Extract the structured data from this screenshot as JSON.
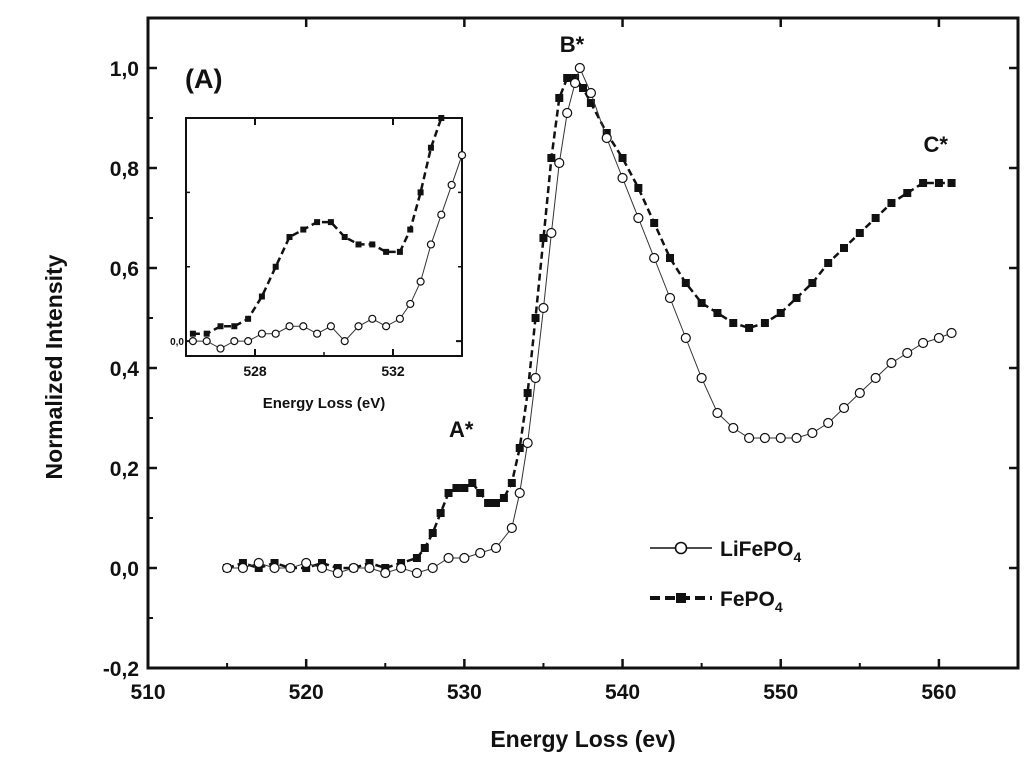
{
  "chart_data": [
    {
      "type": "scatter",
      "panel_label": "(A)",
      "xlabel": "Energy Loss (ev)",
      "ylabel": "Normalized Intensity",
      "xlim": [
        510,
        565
      ],
      "ylim": [
        -0.2,
        1.1
      ],
      "x_ticks": [
        510,
        520,
        530,
        540,
        550,
        560
      ],
      "x_tick_labels": [
        "510",
        "520",
        "530",
        "540",
        "550",
        "560"
      ],
      "y_ticks": [
        -0.2,
        0.0,
        0.2,
        0.4,
        0.6,
        0.8,
        1.0
      ],
      "y_tick_labels": [
        "-0,2",
        "0,0",
        "0,2",
        "0,4",
        "0,6",
        "0,8",
        "1,0"
      ],
      "grid": false,
      "legend_position": "bottom-right",
      "annotations": [
        {
          "text": "A*",
          "x": 529.8,
          "y": 0.25
        },
        {
          "text": "B*",
          "x": 536.8,
          "y": 1.02
        },
        {
          "text": "C*",
          "x": 559.8,
          "y": 0.82
        }
      ],
      "series": [
        {
          "name": "LiFePO",
          "name_subscript": "4",
          "marker": "open-circle",
          "color": "#111111",
          "x": [
            515,
            516,
            517,
            518,
            519,
            520,
            521,
            522,
            523,
            524,
            525,
            526,
            527,
            528,
            529,
            530,
            531,
            532,
            533,
            533.5,
            534,
            534.5,
            535,
            535.5,
            536,
            536.5,
            537,
            537.3,
            538,
            539,
            540,
            541,
            542,
            543,
            544,
            545,
            546,
            547,
            548,
            549,
            550,
            551,
            552,
            553,
            554,
            555,
            556,
            557,
            558,
            559,
            560,
            560.8
          ],
          "y": [
            0.0,
            0.0,
            0.01,
            0.0,
            0.0,
            0.01,
            0.0,
            -0.01,
            0.0,
            0.0,
            -0.01,
            0.0,
            -0.01,
            0.0,
            0.02,
            0.02,
            0.03,
            0.04,
            0.08,
            0.15,
            0.25,
            0.38,
            0.52,
            0.67,
            0.81,
            0.91,
            0.97,
            1.0,
            0.95,
            0.86,
            0.78,
            0.7,
            0.62,
            0.54,
            0.46,
            0.38,
            0.31,
            0.28,
            0.26,
            0.26,
            0.26,
            0.26,
            0.27,
            0.29,
            0.32,
            0.35,
            0.38,
            0.41,
            0.43,
            0.45,
            0.46,
            0.47
          ]
        },
        {
          "name": "FePO",
          "name_subscript": "4",
          "marker": "filled-square",
          "color": "#111111",
          "x": [
            515,
            516,
            517,
            518,
            519,
            520,
            521,
            522,
            523,
            524,
            525,
            526,
            527,
            527.5,
            528,
            528.5,
            529,
            529.5,
            530,
            530.5,
            531,
            531.5,
            532,
            532.5,
            533,
            533.5,
            534,
            534.5,
            535,
            535.5,
            536,
            536.5,
            537,
            537.5,
            538,
            539,
            540,
            541,
            542,
            543,
            544,
            545,
            546,
            547,
            548,
            549,
            550,
            551,
            552,
            553,
            554,
            555,
            556,
            557,
            558,
            559,
            560,
            560.8
          ],
          "y": [
            0.0,
            0.01,
            0.0,
            0.01,
            0.0,
            0.0,
            0.01,
            0.0,
            0.0,
            0.01,
            0.0,
            0.01,
            0.02,
            0.04,
            0.07,
            0.11,
            0.15,
            0.16,
            0.16,
            0.17,
            0.15,
            0.13,
            0.13,
            0.14,
            0.17,
            0.24,
            0.35,
            0.5,
            0.66,
            0.82,
            0.94,
            0.98,
            0.98,
            0.96,
            0.93,
            0.87,
            0.82,
            0.76,
            0.69,
            0.62,
            0.57,
            0.53,
            0.51,
            0.49,
            0.48,
            0.49,
            0.51,
            0.54,
            0.57,
            0.61,
            0.64,
            0.67,
            0.7,
            0.73,
            0.75,
            0.77,
            0.77,
            0.77
          ]
        }
      ]
    },
    {
      "type": "scatter",
      "panel": "inset",
      "xlabel": "Energy Loss (eV)",
      "ylabel": "",
      "xlim": [
        526,
        534
      ],
      "ylim": [
        -0.02,
        0.3
      ],
      "x_ticks": [
        528,
        532
      ],
      "x_tick_labels": [
        "528",
        "532"
      ],
      "y_ticks": [
        0.0
      ],
      "y_tick_labels": [
        "0,0"
      ],
      "grid": false,
      "series": [
        {
          "name": "LiFePO4",
          "marker": "open-circle",
          "x": [
            526.2,
            526.6,
            527.0,
            527.4,
            527.8,
            528.2,
            528.6,
            529.0,
            529.4,
            529.8,
            530.2,
            530.6,
            531.0,
            531.4,
            531.8,
            532.2,
            532.5,
            532.8,
            533.1,
            533.4,
            533.7,
            534.0
          ],
          "y": [
            0.0,
            0.0,
            -0.01,
            0.0,
            0.0,
            0.01,
            0.01,
            0.02,
            0.02,
            0.01,
            0.02,
            0.0,
            0.02,
            0.03,
            0.02,
            0.03,
            0.05,
            0.08,
            0.13,
            0.17,
            0.21,
            0.25
          ]
        },
        {
          "name": "FePO4",
          "marker": "filled-square",
          "x": [
            526.2,
            526.6,
            527.0,
            527.4,
            527.8,
            528.2,
            528.6,
            529.0,
            529.4,
            529.8,
            530.2,
            530.6,
            531.0,
            531.4,
            531.8,
            532.2,
            532.5,
            532.8,
            533.1,
            533.4
          ],
          "y": [
            0.01,
            0.01,
            0.02,
            0.02,
            0.03,
            0.06,
            0.1,
            0.14,
            0.15,
            0.16,
            0.16,
            0.14,
            0.13,
            0.13,
            0.12,
            0.12,
            0.15,
            0.2,
            0.26,
            0.3
          ]
        }
      ]
    }
  ]
}
